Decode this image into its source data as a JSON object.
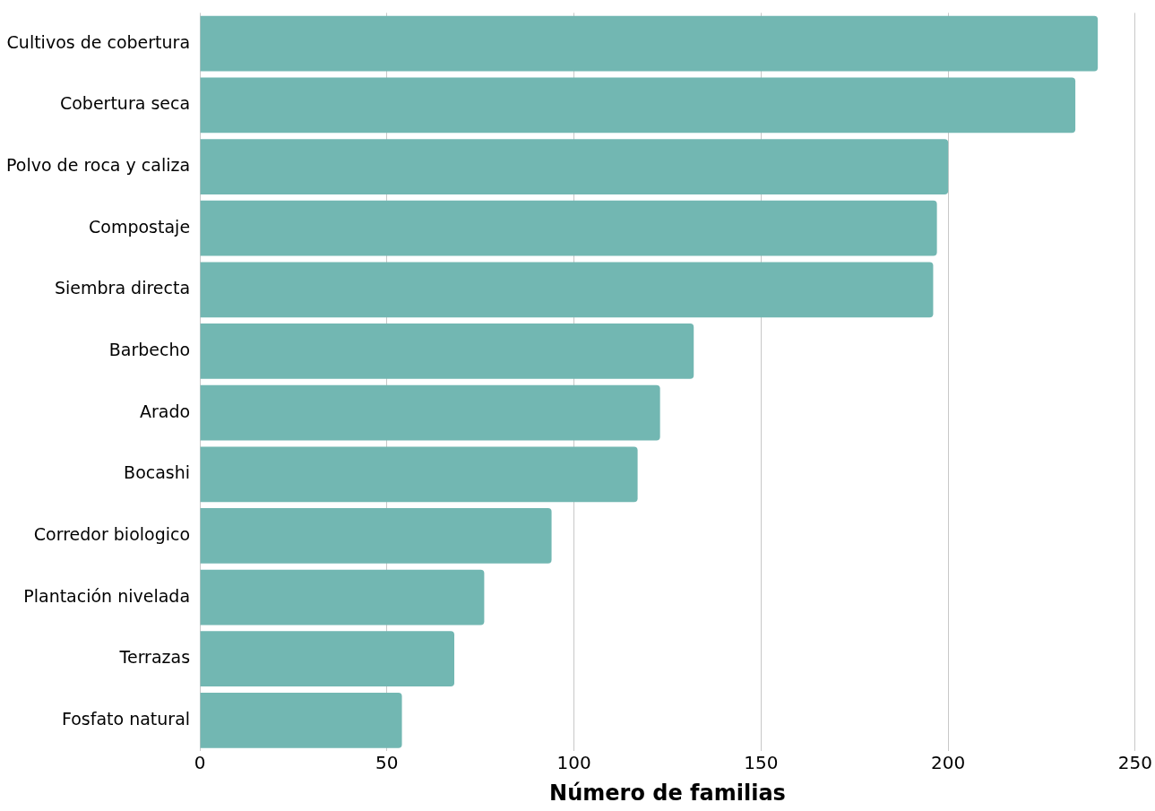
{
  "chart_data": {
    "type": "bar",
    "orientation": "horizontal",
    "xlabel": "Número de familias",
    "categories": [
      "Cultivos de cobertura",
      "Cobertura seca",
      "Polvo de roca y caliza",
      "Compostaje",
      "Siembra directa",
      "Barbecho",
      "Arado",
      "Bocashi",
      "Corredor biologico",
      "Plantación nivelada",
      "Terrazas",
      "Fosfato natural"
    ],
    "values": [
      240,
      234,
      200,
      197,
      196,
      132,
      123,
      117,
      94,
      76,
      68,
      54
    ],
    "color": "#72b7b2",
    "xlim": [
      0,
      250
    ],
    "xticks": [
      0,
      50,
      100,
      150,
      200,
      250
    ],
    "grid": "x",
    "legend": false
  }
}
